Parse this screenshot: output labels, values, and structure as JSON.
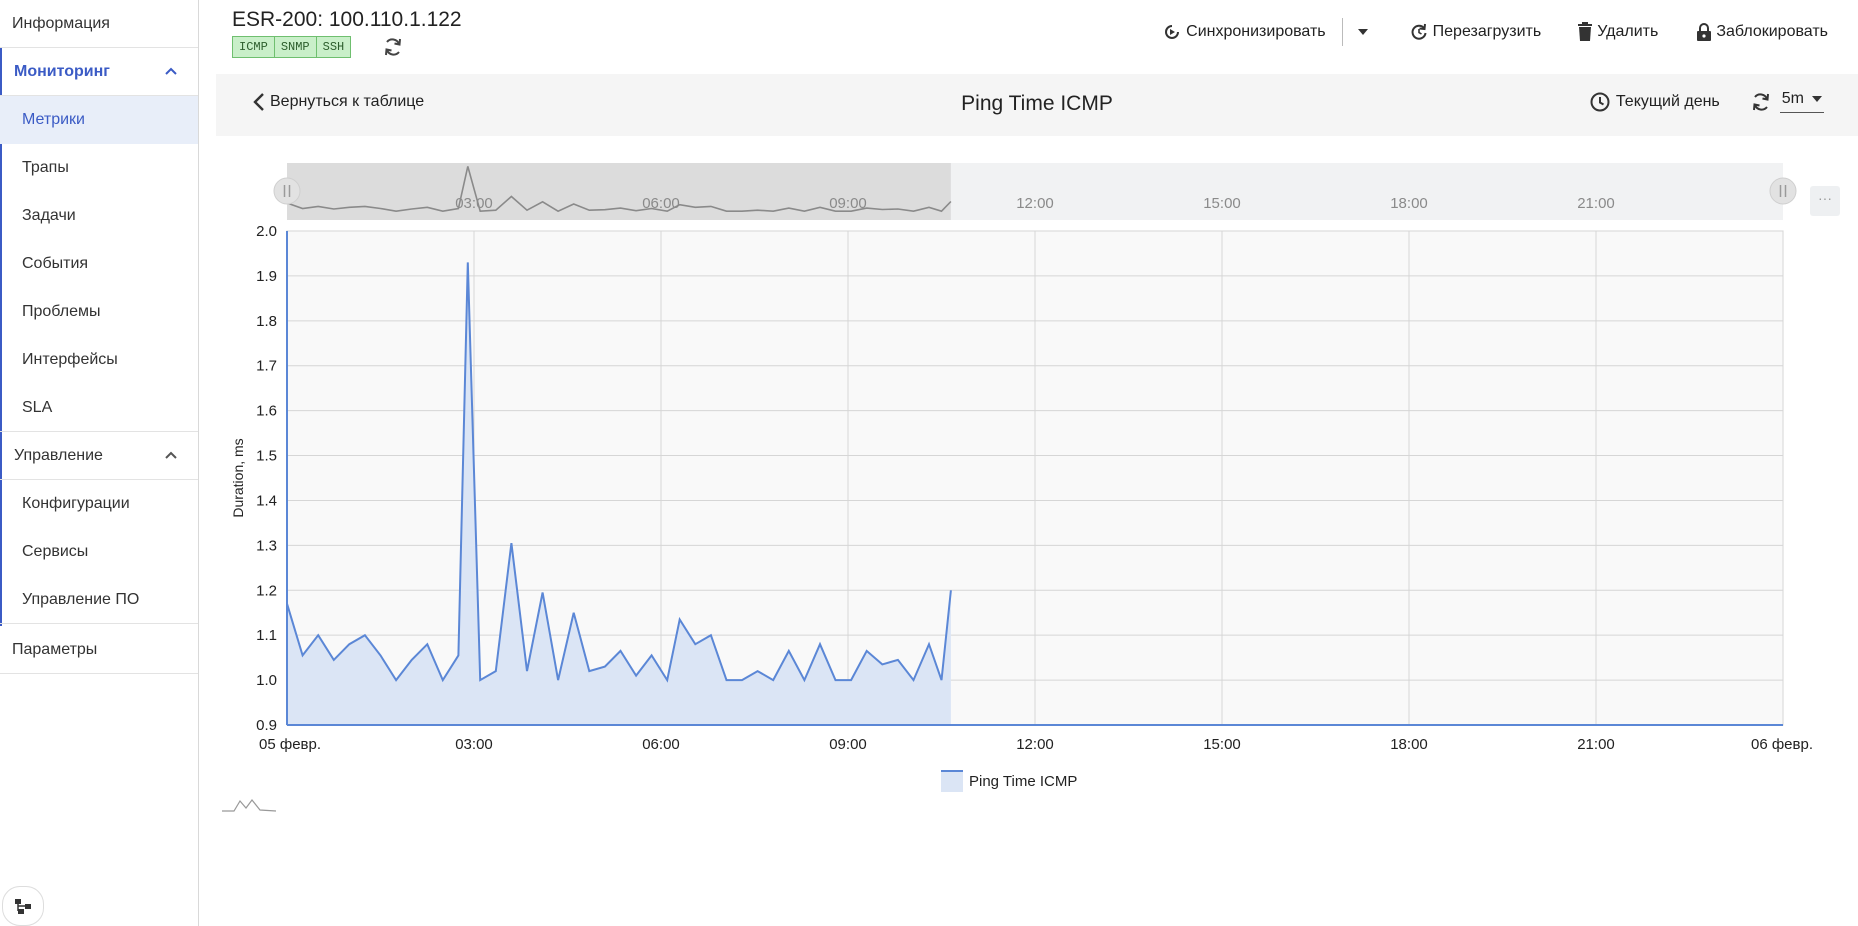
{
  "sidebar": {
    "info": "Информация",
    "monitoring": {
      "label": "Мониторинг",
      "items": [
        "Метрики",
        "Трапы",
        "Задачи",
        "События",
        "Проблемы",
        "Интерфейсы",
        "SLA"
      ]
    },
    "management": {
      "label": "Управление",
      "items": [
        "Конфигурации",
        "Сервисы",
        "Управление ПО"
      ]
    },
    "params": "Параметры"
  },
  "device": {
    "title": "ESR-200: 100.110.1.122",
    "tags": [
      "ICMP",
      "SNMP",
      "SSH"
    ]
  },
  "toolbar": {
    "sync": "Синхронизировать",
    "reboot": "Перезагрузить",
    "delete": "Удалить",
    "lock": "Заблокировать"
  },
  "chart_header": {
    "back": "Вернуться к таблице",
    "title": "Ping Time ICMP",
    "period": "Текущий день",
    "interval": "5m"
  },
  "colors": {
    "accent": "#3b5bc5",
    "series": "#5b87d6",
    "fill": "#dbe5f5",
    "tag_bg": "#c9efc9"
  },
  "chart_data": {
    "type": "area",
    "ylabel": "Duration, ms",
    "ylim": [
      0.9,
      2.0
    ],
    "yticks": [
      "0.9",
      "1.0",
      "1.1",
      "1.2",
      "1.3",
      "1.4",
      "1.5",
      "1.6",
      "1.7",
      "1.8",
      "1.9",
      "2.0"
    ],
    "xlim_hours": [
      0,
      24
    ],
    "xticks": [
      {
        "h": 0,
        "label": "05 февр."
      },
      {
        "h": 3,
        "label": "03:00"
      },
      {
        "h": 6,
        "label": "06:00"
      },
      {
        "h": 9,
        "label": "09:00"
      },
      {
        "h": 12,
        "label": "12:00"
      },
      {
        "h": 15,
        "label": "15:00"
      },
      {
        "h": 18,
        "label": "18:00"
      },
      {
        "h": 21,
        "label": "21:00"
      },
      {
        "h": 24,
        "label": "06 февр."
      }
    ],
    "legend": "Ping Time ICMP",
    "grid": true,
    "series": [
      {
        "name": "Ping Time ICMP",
        "points": [
          [
            0.0,
            1.17
          ],
          [
            0.25,
            1.055
          ],
          [
            0.5,
            1.1
          ],
          [
            0.75,
            1.045
          ],
          [
            1.0,
            1.08
          ],
          [
            1.25,
            1.1
          ],
          [
            1.5,
            1.055
          ],
          [
            1.75,
            1.0
          ],
          [
            2.0,
            1.045
          ],
          [
            2.25,
            1.08
          ],
          [
            2.5,
            1.0
          ],
          [
            2.75,
            1.055
          ],
          [
            2.9,
            1.93
          ],
          [
            3.1,
            1.0
          ],
          [
            3.35,
            1.02
          ],
          [
            3.6,
            1.305
          ],
          [
            3.85,
            1.02
          ],
          [
            4.1,
            1.195
          ],
          [
            4.35,
            1.0
          ],
          [
            4.6,
            1.15
          ],
          [
            4.85,
            1.02
          ],
          [
            5.1,
            1.03
          ],
          [
            5.35,
            1.065
          ],
          [
            5.6,
            1.01
          ],
          [
            5.85,
            1.055
          ],
          [
            6.1,
            1.0
          ],
          [
            6.3,
            1.135
          ],
          [
            6.55,
            1.08
          ],
          [
            6.8,
            1.1
          ],
          [
            7.05,
            1.0
          ],
          [
            7.3,
            1.0
          ],
          [
            7.55,
            1.02
          ],
          [
            7.8,
            1.0
          ],
          [
            8.05,
            1.065
          ],
          [
            8.3,
            1.0
          ],
          [
            8.55,
            1.08
          ],
          [
            8.8,
            1.0
          ],
          [
            9.05,
            1.0
          ],
          [
            9.3,
            1.065
          ],
          [
            9.55,
            1.035
          ],
          [
            9.8,
            1.045
          ],
          [
            10.05,
            1.0
          ],
          [
            10.3,
            1.08
          ],
          [
            10.5,
            1.0
          ],
          [
            10.65,
            1.2
          ]
        ]
      }
    ]
  }
}
